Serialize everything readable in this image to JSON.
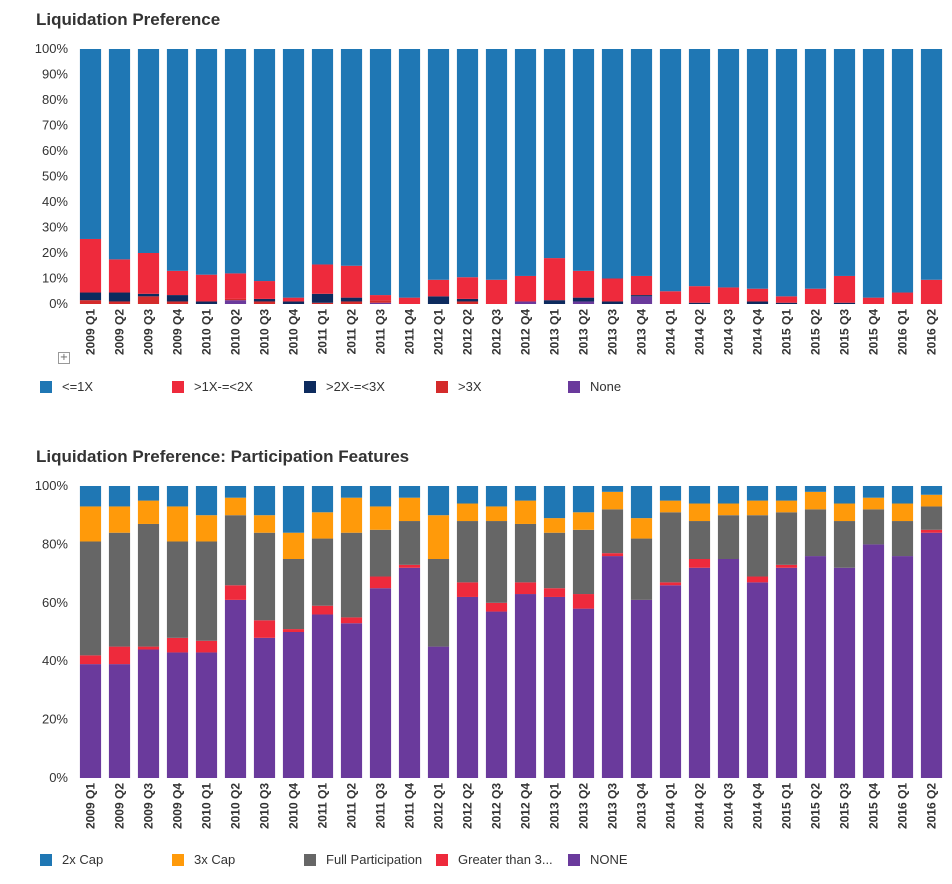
{
  "chart_data": [
    {
      "type": "bar",
      "stacked": true,
      "title": "Liquidation Preference",
      "yticks": [
        "0%",
        "10%",
        "20%",
        "30%",
        "40%",
        "50%",
        "60%",
        "70%",
        "80%",
        "90%",
        "100%"
      ],
      "ylim": [
        0,
        100
      ],
      "categories": [
        "2009 Q1",
        "2009 Q2",
        "2009 Q3",
        "2009 Q4",
        "2010 Q1",
        "2010 Q2",
        "2010 Q3",
        "2010 Q4",
        "2011 Q1",
        "2011 Q2",
        "2011 Q3",
        "2011 Q4",
        "2012 Q1",
        "2012 Q2",
        "2012 Q3",
        "2012 Q4",
        "2013 Q1",
        "2013 Q2",
        "2013 Q3",
        "2013 Q4",
        "2014 Q1",
        "2014 Q2",
        "2014 Q3",
        "2014 Q4",
        "2015 Q1",
        "2015 Q2",
        "2015 Q3",
        "2015 Q4",
        "2016 Q1",
        "2016 Q2"
      ],
      "series": [
        {
          "name": "None",
          "color": "#6a3a9c",
          "values": [
            0,
            0,
            0,
            0,
            0,
            1.5,
            0,
            0,
            0,
            0,
            0.5,
            0,
            0,
            0,
            0,
            1,
            0,
            1,
            0,
            3,
            0,
            0,
            0,
            0,
            0,
            0,
            0,
            0,
            0,
            0
          ]
        },
        {
          "name": ">3X",
          "color": "#d42b2b",
          "values": [
            1.5,
            1,
            3,
            1,
            0,
            0.5,
            1,
            0,
            0.5,
            1,
            1,
            0,
            0,
            1,
            0,
            0,
            0,
            0,
            0,
            0,
            0,
            0,
            0,
            0,
            0,
            0,
            0,
            0,
            0,
            0
          ]
        },
        {
          "name": ">2X-=<3X",
          "color": "#0d2b5e",
          "values": [
            3,
            3.5,
            1,
            2.5,
            1,
            0,
            1,
            1,
            3.5,
            1.5,
            0,
            0,
            3,
            1,
            0,
            0,
            1.5,
            1.5,
            1,
            0.5,
            0,
            0.5,
            0,
            1,
            0.5,
            0,
            0.5,
            0,
            0,
            0
          ]
        },
        {
          "name": ">1X-=<2X",
          "color": "#ee2a3c",
          "values": [
            21,
            13,
            16,
            9.5,
            10.5,
            10,
            7,
            1.5,
            11.5,
            12.5,
            2,
            2.5,
            6.5,
            8.5,
            9.5,
            10,
            16.5,
            10.5,
            9,
            7.5,
            5,
            6.5,
            6.5,
            5,
            2.5,
            6,
            10.5,
            2.5,
            4.5,
            9.5
          ]
        },
        {
          "name": "<=1X",
          "color": "#1f77b4",
          "values": [
            74.5,
            82.5,
            80,
            87,
            88.5,
            88,
            91,
            97.5,
            84.5,
            85,
            96.5,
            97.5,
            90.5,
            89.5,
            90.5,
            89,
            82,
            87,
            90,
            89,
            95,
            93,
            93.5,
            94,
            97,
            94,
            89,
            97.5,
            95.5,
            90.5
          ]
        }
      ],
      "legend": [
        "<=1X",
        ">1X-=<2X",
        ">2X-=<3X",
        ">3X",
        "None"
      ],
      "legend_colors": [
        "#1f77b4",
        "#ee2a3c",
        "#0d2b5e",
        "#d42b2b",
        "#6a3a9c"
      ]
    },
    {
      "type": "bar",
      "stacked": true,
      "title": "Liquidation Preference: Participation Features",
      "yticks": [
        "0%",
        "20%",
        "40%",
        "60%",
        "80%",
        "100%"
      ],
      "ylim": [
        0,
        100
      ],
      "categories": [
        "2009 Q1",
        "2009 Q2",
        "2009 Q3",
        "2009 Q4",
        "2010 Q1",
        "2010 Q2",
        "2010 Q3",
        "2010 Q4",
        "2011 Q1",
        "2011 Q2",
        "2011 Q3",
        "2011 Q4",
        "2012 Q1",
        "2012 Q2",
        "2012 Q3",
        "2012 Q4",
        "2013 Q1",
        "2013 Q2",
        "2013 Q3",
        "2013 Q4",
        "2014 Q1",
        "2014 Q2",
        "2014 Q3",
        "2014 Q4",
        "2015 Q1",
        "2015 Q2",
        "2015 Q3",
        "2015 Q4",
        "2016 Q1",
        "2016 Q2"
      ],
      "series": [
        {
          "name": "NONE",
          "color": "#6a3a9c",
          "values": [
            39,
            39,
            44,
            43,
            43,
            61,
            48,
            50,
            56,
            53,
            65,
            72,
            45,
            62,
            57,
            63,
            62,
            58,
            76,
            61,
            66,
            72,
            75,
            67,
            72,
            76,
            72,
            80,
            76,
            84
          ]
        },
        {
          "name": "Greater than 3...",
          "color": "#ee2a3c",
          "values": [
            3,
            6,
            1,
            5,
            4,
            5,
            6,
            1,
            3,
            2,
            4,
            1,
            0,
            5,
            3,
            4,
            3,
            5,
            1,
            0,
            1,
            3,
            0,
            2,
            1,
            0,
            0,
            0,
            0,
            1
          ]
        },
        {
          "name": "Full Participation",
          "color": "#666666",
          "values": [
            39,
            39,
            42,
            33,
            34,
            24,
            30,
            24,
            23,
            29,
            16,
            15,
            30,
            21,
            28,
            20,
            19,
            22,
            15,
            21,
            24,
            13,
            15,
            21,
            18,
            16,
            16,
            12,
            12,
            8
          ]
        },
        {
          "name": "3x Cap",
          "color": "#ff9a0a",
          "values": [
            12,
            9,
            8,
            12,
            9,
            6,
            6,
            9,
            9,
            12,
            8,
            8,
            15,
            6,
            5,
            8,
            5,
            6,
            6,
            7,
            4,
            6,
            4,
            5,
            4,
            6,
            6,
            4,
            6,
            4
          ]
        },
        {
          "name": "2x Cap",
          "color": "#1f77b4",
          "values": [
            7,
            7,
            5,
            7,
            10,
            4,
            10,
            16,
            9,
            4,
            7,
            4,
            10,
            6,
            7,
            5,
            11,
            9,
            2,
            11,
            5,
            6,
            6,
            5,
            5,
            2,
            6,
            4,
            6,
            3
          ]
        }
      ],
      "legend": [
        "2x Cap",
        "3x Cap",
        "Full Participation",
        "Greater than 3...",
        "NONE"
      ],
      "legend_colors": [
        "#1f77b4",
        "#ff9a0a",
        "#666666",
        "#ee2a3c",
        "#6a3a9c"
      ]
    }
  ]
}
